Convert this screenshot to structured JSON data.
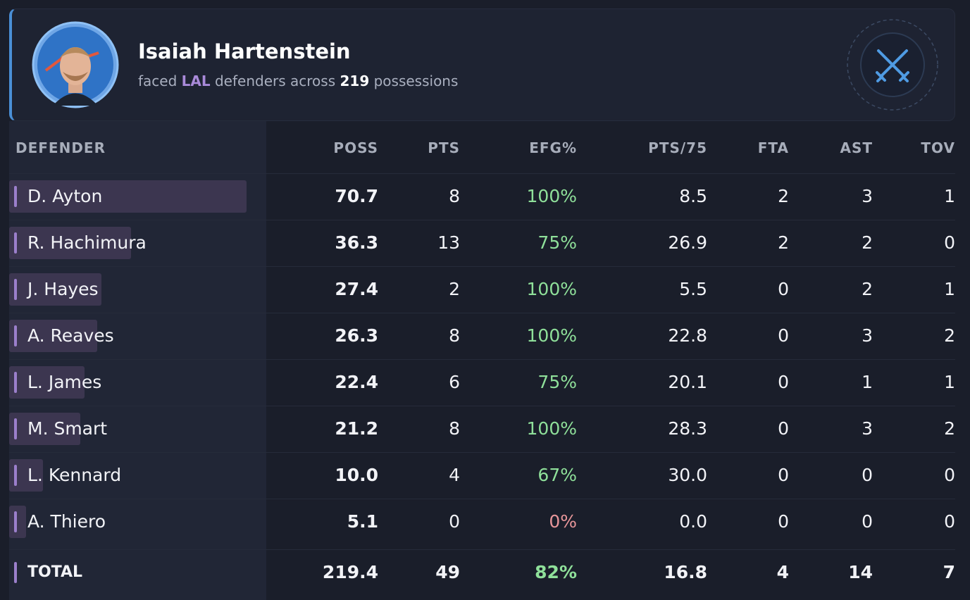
{
  "header": {
    "player": "Isaiah Hartenstein",
    "prefix": "faced",
    "team": "LAL",
    "middle": "defenders across",
    "count": "219",
    "suffix": "possessions"
  },
  "table": {
    "columns": [
      "DEFENDER",
      "POSS",
      "PTS",
      "EFG%",
      "PTS/75",
      "FTA",
      "AST",
      "TOV"
    ],
    "rows": [
      [
        "D. Ayton",
        "70.7",
        "8",
        "100%",
        "8.5",
        "2",
        "3",
        "1"
      ],
      [
        "R. Hachimura",
        "36.3",
        "13",
        "75%",
        "26.9",
        "2",
        "2",
        "0"
      ],
      [
        "J. Hayes",
        "27.4",
        "2",
        "100%",
        "5.5",
        "0",
        "2",
        "1"
      ],
      [
        "A. Reaves",
        "26.3",
        "8",
        "100%",
        "22.8",
        "0",
        "3",
        "2"
      ],
      [
        "L. James",
        "22.4",
        "6",
        "75%",
        "20.1",
        "0",
        "1",
        "1"
      ],
      [
        "M. Smart",
        "21.2",
        "8",
        "100%",
        "28.3",
        "0",
        "3",
        "2"
      ],
      [
        "L. Kennard",
        "10.0",
        "4",
        "67%",
        "30.0",
        "0",
        "0",
        "0"
      ],
      [
        "A. Thiero",
        "5.1",
        "0",
        "0%",
        "0.0",
        "0",
        "0",
        "0"
      ]
    ],
    "total": [
      "TOTAL",
      "219.4",
      "49",
      "82%",
      "16.8",
      "4",
      "14",
      "7"
    ]
  }
}
